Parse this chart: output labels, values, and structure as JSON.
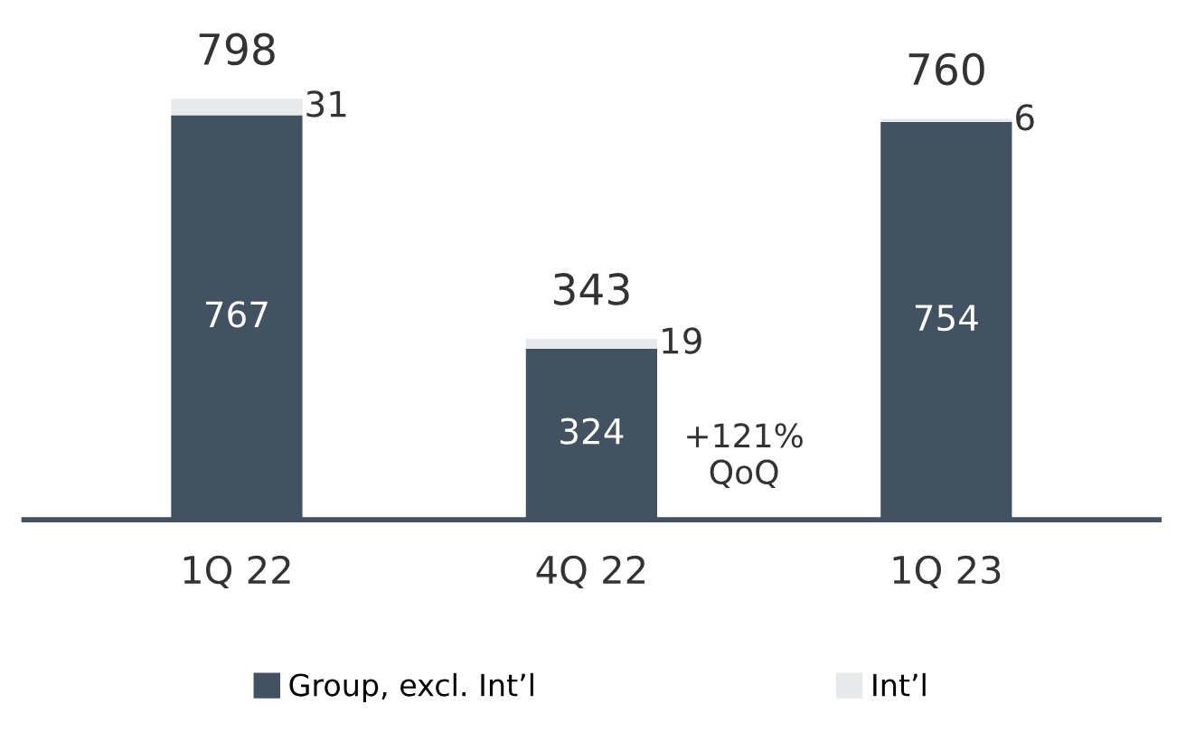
{
  "chart_data": {
    "type": "bar",
    "stacked": true,
    "categories": [
      "1Q 22",
      "4Q 22",
      "1Q 23"
    ],
    "series": [
      {
        "name": "Group, excl. Int’l",
        "color": "#435260",
        "values": [
          767,
          324,
          754
        ]
      },
      {
        "name": "Int’l",
        "color": "#e8e9ea",
        "values": [
          31,
          19,
          6
        ]
      }
    ],
    "totals": [
      "798",
      "343",
      "760"
    ],
    "data_labels": true,
    "legend": "bottom",
    "grid": false,
    "annotations": [
      "+121%\nQoQ"
    ]
  }
}
